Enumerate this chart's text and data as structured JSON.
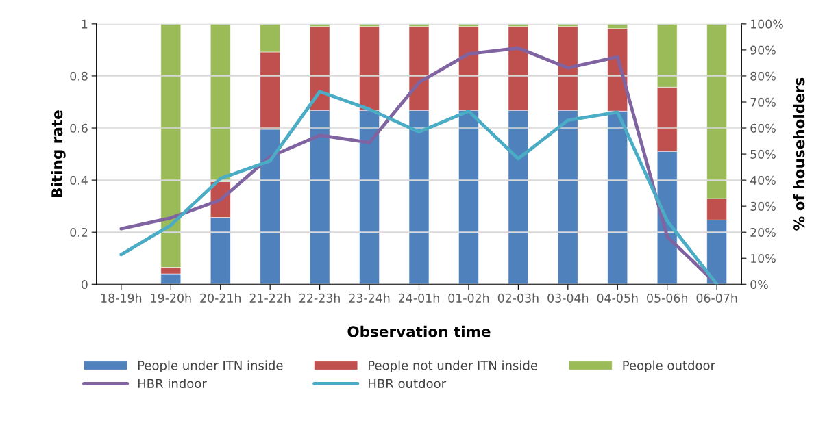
{
  "chart_data": {
    "type": "bar",
    "stacked": true,
    "xlabel": "Observation time",
    "ylabel": "Biting rate",
    "y2label": "% of householders",
    "categories": [
      "18-19h",
      "19-20h",
      "20-21h",
      "21-22h",
      "22-23h",
      "23-24h",
      "24-01h",
      "01-02h",
      "02-03h",
      "03-04h",
      "04-05h",
      "05-06h",
      "06-07h"
    ],
    "series": [
      {
        "name": "People under ITN inside",
        "color": "#4f81bd",
        "axis": "y2",
        "values": [
          null,
          4,
          25.7,
          59.5,
          66.8,
          66.8,
          66.8,
          66.8,
          66.8,
          66.8,
          66.5,
          51.0,
          24.7
        ]
      },
      {
        "name": "People not under ITN inside",
        "color": "#c0504d",
        "axis": "y2",
        "values": [
          null,
          2.5,
          13.7,
          29.7,
          32.2,
          32.2,
          32.2,
          32.2,
          32.2,
          32.2,
          31.7,
          24.7,
          8.2
        ]
      },
      {
        "name": "People outdoor",
        "color": "#9bbb59",
        "axis": "y2",
        "values": [
          null,
          93.5,
          60.6,
          10.8,
          1.0,
          1.0,
          1.0,
          1.0,
          1.0,
          1.0,
          1.8,
          24.3,
          67.1
        ]
      },
      {
        "name": "HBR indoor",
        "type": "line",
        "color": "#8064a2",
        "values": [
          0.213,
          0.255,
          0.324,
          0.49,
          0.572,
          0.544,
          0.775,
          0.885,
          0.907,
          0.831,
          0.873,
          0.183,
          0
        ]
      },
      {
        "name": "HBR outdoor",
        "type": "line",
        "color": "#4bacc6",
        "values": [
          0.114,
          0.227,
          0.406,
          0.474,
          0.74,
          0.672,
          0.585,
          0.665,
          0.482,
          0.63,
          0.661,
          0.244,
          0
        ]
      }
    ],
    "ylim": [
      0,
      1
    ],
    "yticks": [
      0,
      0.2,
      0.4,
      0.6,
      0.8,
      1
    ],
    "y2lim": [
      0,
      100
    ],
    "y2ticks": [
      {
        "value": 0,
        "label": "0%"
      },
      {
        "value": 10,
        "label": "10%"
      },
      {
        "value": 20,
        "label": "20%"
      },
      {
        "value": 30,
        "label": "30%"
      },
      {
        "value": 40,
        "label": "40%"
      },
      {
        "value": 50,
        "label": "50%"
      },
      {
        "value": 60,
        "label": "60%"
      },
      {
        "value": 70,
        "label": "70%"
      },
      {
        "value": 80,
        "label": "80%"
      },
      {
        "value": 90,
        "label": "90%"
      },
      {
        "value": 100,
        "label": "100%"
      }
    ],
    "grid": "y",
    "legend": "bottom"
  }
}
